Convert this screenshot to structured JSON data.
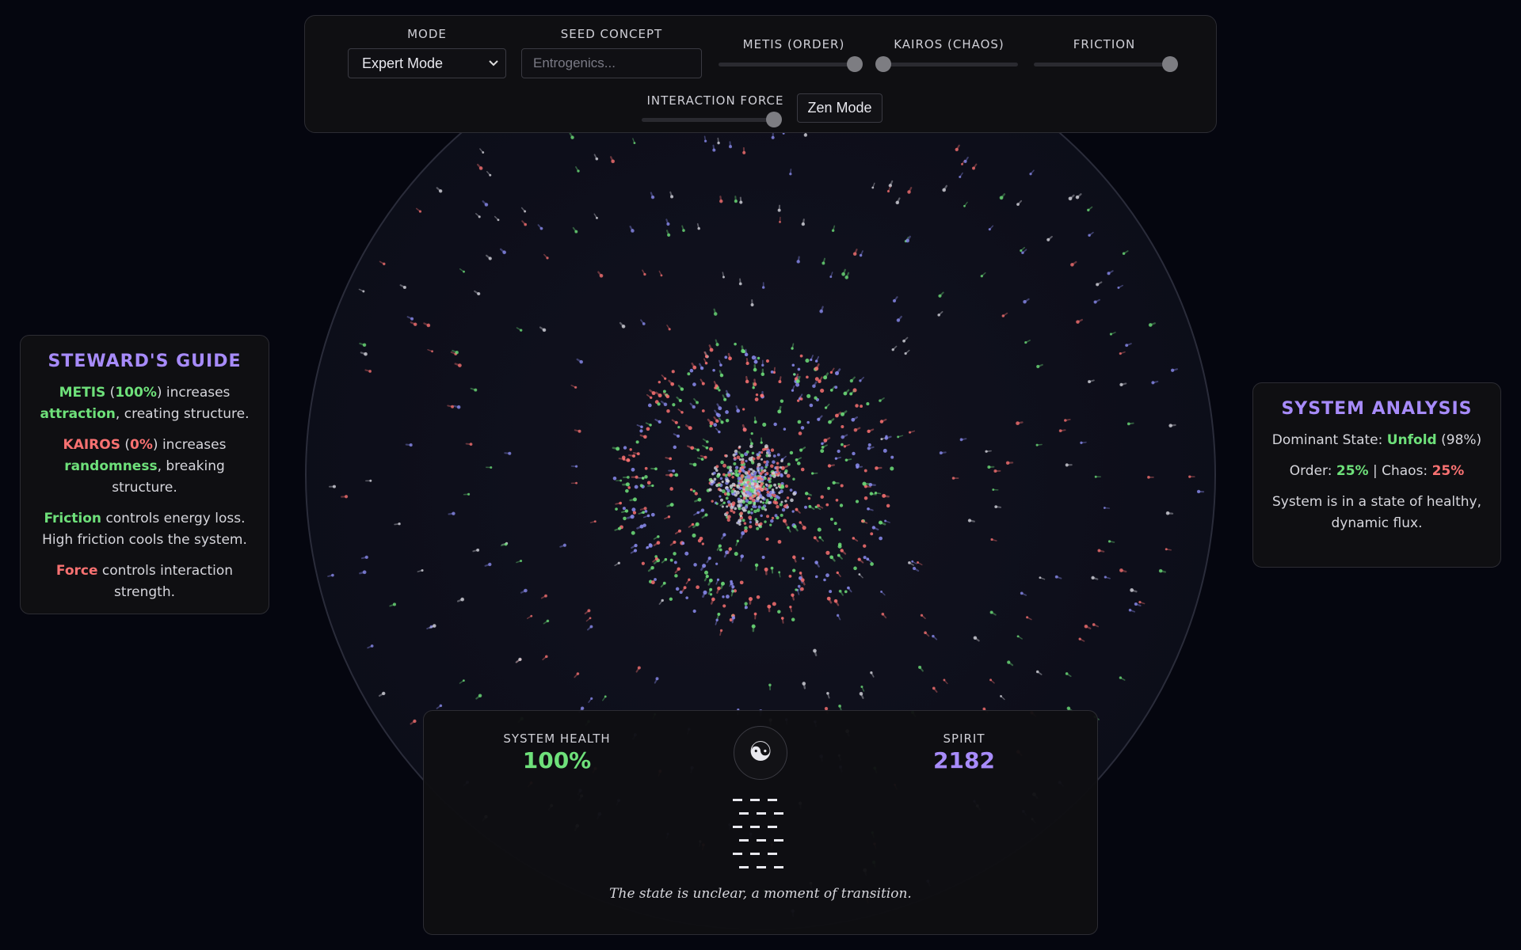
{
  "controls": {
    "mode_label": "MODE",
    "mode_value": "Expert Mode",
    "seed_label": "SEED CONCEPT",
    "seed_placeholder": "Entrogenics...",
    "metis_label": "METIS (ORDER)",
    "metis_value": 1.0,
    "kairos_label": "KAIROS (CHAOS)",
    "kairos_value": 0.0,
    "friction_label": "FRICTION",
    "friction_value": 1.0,
    "force_label": "INTERACTION FORCE",
    "force_value": 1.0,
    "zen_label": "Zen Mode"
  },
  "guide": {
    "title": "STEWARD'S GUIDE",
    "metis_word": "METIS",
    "metis_pct": "100%",
    "metis_mid": "increases",
    "metis_key": "attraction",
    "metis_tail": ", creating structure.",
    "kairos_word": "KAIROS",
    "kairos_pct": "0%",
    "kairos_mid": "increases",
    "kairos_key": "randomness",
    "kairos_tail": ", breaking structure.",
    "friction_word": "Friction",
    "friction_text": "controls energy loss. High friction cools the system.",
    "force_word": "Force",
    "force_text": "controls interaction strength."
  },
  "analysis": {
    "title": "SYSTEM ANALYSIS",
    "dominant_label": "Dominant State:",
    "dominant_value": "Unfold",
    "dominant_pct": "(98%)",
    "order_label": "Order:",
    "order_value": "25%",
    "chaos_label": "Chaos:",
    "chaos_value": "25%",
    "summary": "System is in a state of healthy, dynamic flux."
  },
  "status": {
    "health_label": "SYSTEM HEALTH",
    "health_value": "100%",
    "spirit_label": "SPIRIT",
    "spirit_value": "2182",
    "yin_yang_glyph": "☯",
    "hexagram_lines": [
      "broken",
      "broken",
      "broken",
      "broken",
      "broken",
      "broken"
    ],
    "verdict": "The state is unclear, a moment of transition."
  },
  "colors": {
    "accent": "#a78bfa",
    "order": "#6ee07a",
    "chaos": "#f87171",
    "particle_blue": "#8b8cf0",
    "particle_white": "#d8d8e0"
  },
  "icons": {
    "mode_dropdown": "chevron-down-icon",
    "yin_yang": "yin-yang-icon"
  }
}
